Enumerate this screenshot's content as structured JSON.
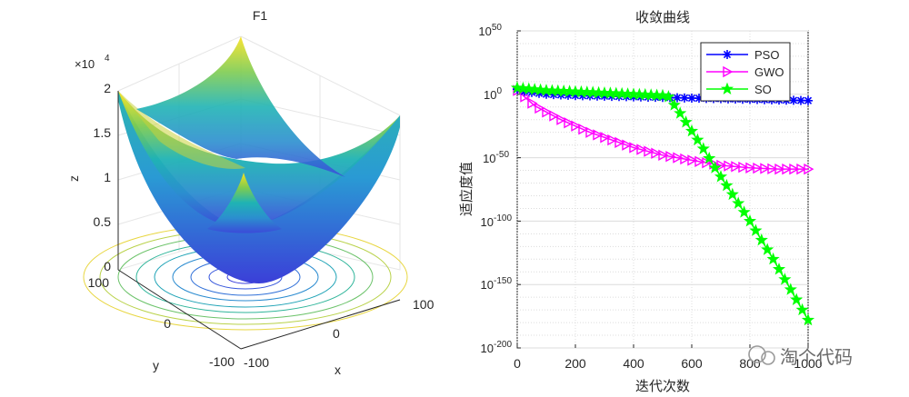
{
  "chart_data": [
    {
      "type": "surface3d",
      "title": "F1",
      "xlabel": "x",
      "ylabel": "y",
      "zlabel": "z",
      "z_exponent": "×10",
      "z_exponent_power": "4",
      "x_ticks": [
        "-100",
        "0",
        "100"
      ],
      "y_ticks": [
        "-100",
        "0",
        "100"
      ],
      "z_ticks": [
        "0",
        "0.5",
        "1",
        "1.5",
        "2"
      ],
      "function": "sphere: z = x^2 + y^2",
      "xlim": [
        -100,
        100
      ],
      "ylim": [
        -100,
        100
      ],
      "zlim": [
        0,
        20000
      ]
    },
    {
      "type": "line",
      "title": "收敛曲线",
      "xlabel": "迭代次数",
      "ylabel": "适应度值",
      "yscale": "log",
      "xlim": [
        0,
        1000
      ],
      "ylim_exp": [
        -200,
        50
      ],
      "x_ticks": [
        "0",
        "200",
        "400",
        "600",
        "800",
        "1000"
      ],
      "y_tick_exps": [
        "50",
        "0",
        "-50",
        "-100",
        "-150",
        "-200"
      ],
      "y_tick_base": "10",
      "legend_position": "top-right",
      "series": [
        {
          "name": "PSO",
          "color": "#0000ff",
          "marker": "star",
          "x": [
            0,
            30,
            100,
            200,
            300,
            400,
            500,
            600,
            700,
            800,
            900,
            1000
          ],
          "log10_y": [
            4,
            2,
            0,
            -1,
            -1.5,
            -2,
            -2.5,
            -3,
            -3.5,
            -4,
            -4.5,
            -5
          ]
        },
        {
          "name": "GWO",
          "color": "#ff00ff",
          "marker": "triangle-right",
          "x": [
            0,
            30,
            60,
            100,
            150,
            200,
            250,
            300,
            350,
            400,
            450,
            500,
            550,
            600,
            650,
            700,
            750,
            800,
            850,
            900,
            950,
            1000
          ],
          "log10_y": [
            3,
            -3,
            -9,
            -14,
            -20,
            -25,
            -30,
            -34,
            -38,
            -42,
            -45,
            -48,
            -50,
            -52,
            -54,
            -56,
            -57,
            -58,
            -58.5,
            -59,
            -59,
            -59
          ]
        },
        {
          "name": "SO",
          "color": "#00ff00",
          "marker": "pentagram",
          "x": [
            0,
            100,
            200,
            300,
            400,
            500,
            520,
            560,
            600,
            640,
            680,
            720,
            760,
            800,
            840,
            880,
            920,
            960,
            1000
          ],
          "log10_y": [
            5,
            3,
            2,
            1,
            0,
            -1,
            -2,
            -15,
            -29,
            -43,
            -58,
            -72,
            -86,
            -100,
            -115,
            -130,
            -146,
            -162,
            -178
          ]
        }
      ]
    }
  ],
  "watermark": "淘个代码"
}
